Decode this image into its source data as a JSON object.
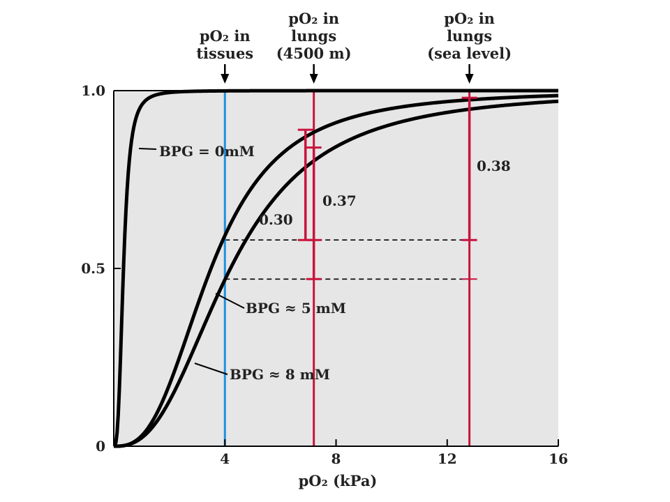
{
  "chart_data": {
    "type": "line",
    "xlabel": "pO₂ (kPa)",
    "xlim": [
      0,
      16
    ],
    "ylim": [
      0,
      1
    ],
    "x_ticks": [
      {
        "v": 4,
        "label": "4"
      },
      {
        "v": 8,
        "label": "8"
      },
      {
        "v": 12,
        "label": "12"
      },
      {
        "v": 16,
        "label": "16"
      }
    ],
    "y_ticks": [
      {
        "v": 0,
        "label": "0"
      },
      {
        "v": 0.5,
        "label": "0.5"
      },
      {
        "v": 1.0,
        "label": "1.0"
      }
    ],
    "grid": false,
    "colors": {
      "plot_bg": "#e6e6e6",
      "curve": "#000000",
      "tissue_line": "#1e90e0",
      "lung_lines": "#c8143c"
    },
    "series": [
      {
        "label": "BPG = 0mM",
        "p50": 0.35,
        "n": 3.0,
        "x": [
          0,
          0.5,
          1.0,
          1.5,
          2,
          4,
          8,
          16
        ],
        "values": [
          0,
          0.74,
          0.96,
          0.99,
          1.0,
          1.0,
          1.0,
          1.0
        ]
      },
      {
        "label": "BPG ≈ 5 mM",
        "p50": 3.5,
        "n": 2.8,
        "x": [
          0,
          2,
          4,
          6,
          7,
          8,
          10,
          13,
          16
        ],
        "values": [
          0,
          0.17,
          0.59,
          0.82,
          0.88,
          0.91,
          0.95,
          0.98,
          0.99
        ]
      },
      {
        "label": "BPG ≈ 8 mM",
        "p50": 4.2,
        "n": 2.6,
        "x": [
          0,
          2,
          4,
          6,
          7,
          8,
          10,
          13,
          16
        ],
        "values": [
          0,
          0.12,
          0.47,
          0.72,
          0.84,
          0.87,
          0.91,
          0.97,
          0.99
        ]
      }
    ],
    "vertical_lines": [
      {
        "x": 4,
        "color": "#1e90e0",
        "label": [
          "pO₂ in",
          "tissues"
        ]
      },
      {
        "x": 7.2,
        "color": "#c8143c",
        "label": [
          "pO₂ in",
          "lungs",
          "(4500 m)"
        ]
      },
      {
        "x": 12.8,
        "color": "#c8143c",
        "label": [
          "pO₂ in",
          "lungs",
          "(sea level)"
        ]
      }
    ],
    "dashed_levels": [
      0.58,
      0.47
    ],
    "annotations": [
      {
        "text": "0.30",
        "x": 6.9,
        "y": 0.88
      },
      {
        "text": "0.37",
        "x": 7.2,
        "y": 0.84
      },
      {
        "text": "0.38",
        "x": 12.8,
        "y": 0.97
      }
    ]
  }
}
